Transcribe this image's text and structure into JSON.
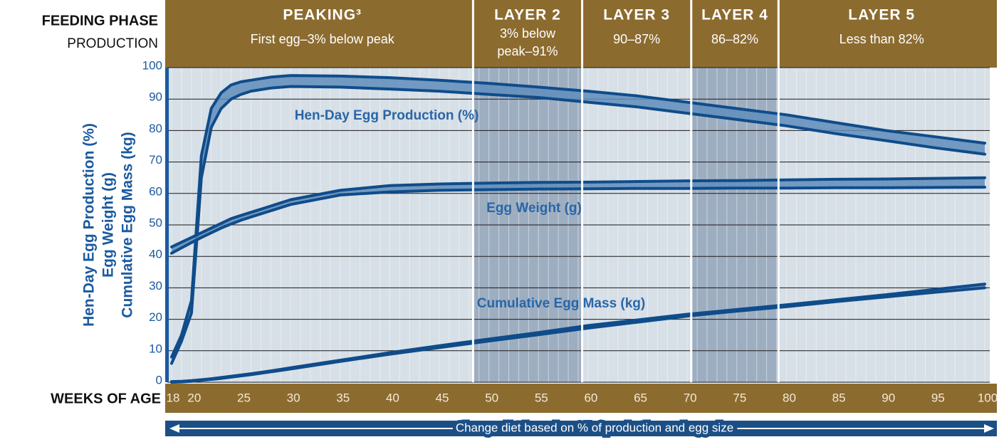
{
  "chart_data": {
    "type": "band",
    "header_title": "FEEDING PHASE",
    "header_subtitle": "PRODUCTION",
    "x_label": "WEEKS OF AGE",
    "y_label": [
      "Hen-Day Egg Production (%)",
      "Egg Weight (g)",
      "Cumulative Egg Mass (kg)"
    ],
    "footer": "Change diet based on  % of production and egg size",
    "phases": [
      {
        "label": "PEAKING³",
        "subtitle": [
          "First egg–3% below peak"
        ],
        "start": 18,
        "end": 48.4,
        "shaded": false
      },
      {
        "label": "LAYER 2",
        "subtitle": [
          "3% below",
          "peak–91%"
        ],
        "start": 48.4,
        "end": 59.4,
        "shaded": true
      },
      {
        "label": "LAYER 3",
        "subtitle": [
          "90–87%"
        ],
        "start": 59.4,
        "end": 70.4,
        "shaded": false
      },
      {
        "label": "LAYER 4",
        "subtitle": [
          "86–82%"
        ],
        "start": 70.4,
        "end": 79.2,
        "shaded": true
      },
      {
        "label": "LAYER 5",
        "subtitle": [
          "Less than 82%"
        ],
        "start": 79.2,
        "end": 100,
        "shaded": false
      }
    ],
    "x": [
      18,
      19,
      20,
      21,
      22,
      23,
      24,
      25,
      26,
      28,
      30,
      35,
      40,
      45,
      50,
      55,
      60,
      65,
      70,
      75,
      80,
      85,
      90,
      95,
      100
    ],
    "series": [
      {
        "name": "Hen-Day Egg Production (%)",
        "color": "#0f4c8a",
        "high": [
          8,
          15,
          26,
          72,
          87,
          92,
          94.5,
          95.5,
          96,
          97,
          97.5,
          97.3,
          96.8,
          96,
          95,
          93.8,
          92.5,
          91,
          89,
          87,
          85,
          82.5,
          80,
          78,
          76
        ],
        "low": [
          6,
          13,
          22,
          65,
          81,
          87,
          90,
          91.5,
          92.5,
          93.5,
          94,
          93.8,
          93.2,
          92.5,
          91.5,
          90.5,
          89,
          87.5,
          85.5,
          83.5,
          81.5,
          79,
          76.8,
          74.5,
          72.5
        ]
      },
      {
        "name": "Egg Weight (g)",
        "color": "#0f4c8a",
        "high": [
          43,
          44.5,
          46,
          47.5,
          49,
          50.5,
          52,
          53,
          54,
          56,
          58,
          61,
          62.5,
          63,
          63.3,
          63.5,
          63.6,
          63.8,
          64,
          64.1,
          64.3,
          64.5,
          64.6,
          64.8,
          65
        ],
        "low": [
          41,
          42.7,
          44.4,
          46,
          47.5,
          49,
          50.3,
          51.5,
          52.5,
          54.5,
          56.5,
          59.5,
          60.5,
          61,
          61.2,
          61.4,
          61.5,
          61.6,
          61.6,
          61.7,
          61.7,
          61.8,
          61.8,
          61.9,
          62
        ]
      },
      {
        "name": "Cumulative Egg Mass (kg)",
        "color": "#0f4c8a",
        "high": [
          0.2,
          0.3,
          0.5,
          0.8,
          1.1,
          1.5,
          1.9,
          2.3,
          2.7,
          3.6,
          4.6,
          7,
          9.4,
          11.6,
          13.7,
          15.8,
          18,
          19.8,
          21.6,
          23.1,
          24.6,
          26.2,
          27.8,
          29.5,
          31.2
        ],
        "low": [
          0,
          0.1,
          0.3,
          0.6,
          0.9,
          1.2,
          1.6,
          2,
          2.4,
          3.3,
          4.2,
          6.6,
          8.9,
          11,
          13.1,
          15.1,
          17.2,
          19.1,
          21,
          22.6,
          24,
          25.6,
          27.1,
          28.6,
          30
        ]
      }
    ],
    "xlim": [
      18,
      100
    ],
    "ylim": [
      0,
      100
    ],
    "xticks": [
      18,
      20,
      25,
      30,
      35,
      40,
      45,
      50,
      55,
      60,
      65,
      70,
      75,
      80,
      85,
      90,
      95,
      100
    ],
    "yticks": [
      0,
      10,
      20,
      30,
      40,
      50,
      60,
      70,
      80,
      90,
      100
    ],
    "grid": true
  }
}
